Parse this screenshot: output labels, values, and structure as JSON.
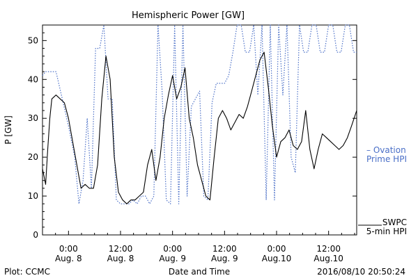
{
  "chart_data": {
    "type": "line",
    "title": "Hemispheric Power [GW]",
    "ylabel": "P [GW]",
    "xlabel": "Date and Time",
    "ylim": [
      0,
      54
    ],
    "xlim": [
      -0.25,
      2.77
    ],
    "yticks": [
      0,
      10,
      20,
      30,
      40,
      50
    ],
    "grid": false,
    "xticks": [
      {
        "x": 0.0,
        "time": "0:00",
        "date": "Aug. 8"
      },
      {
        "x": 0.5,
        "time": "12:00",
        "date": "Aug. 8"
      },
      {
        "x": 1.0,
        "time": "0:00",
        "date": "Aug. 9"
      },
      {
        "x": 1.5,
        "time": "12:00",
        "date": "Aug. 9"
      },
      {
        "x": 2.0,
        "time": "0:00",
        "date": "Aug.10"
      },
      {
        "x": 2.5,
        "time": "12:00",
        "date": "Aug.10"
      }
    ],
    "series": [
      {
        "name": "SWPC 5-min HPI",
        "label_lines": [
          "SWPC",
          "5-min HPI"
        ],
        "color": "#000000",
        "style": "solid",
        "x": [
          -0.25,
          -0.22,
          -0.2,
          -0.18,
          -0.16,
          -0.12,
          -0.08,
          -0.04,
          0.0,
          0.04,
          0.08,
          0.12,
          0.16,
          0.2,
          0.24,
          0.28,
          0.32,
          0.36,
          0.4,
          0.44,
          0.48,
          0.52,
          0.56,
          0.6,
          0.64,
          0.68,
          0.72,
          0.76,
          0.8,
          0.84,
          0.88,
          0.92,
          0.96,
          1.0,
          1.04,
          1.08,
          1.12,
          1.16,
          1.2,
          1.24,
          1.28,
          1.32,
          1.36,
          1.4,
          1.44,
          1.48,
          1.52,
          1.56,
          1.6,
          1.64,
          1.68,
          1.72,
          1.76,
          1.8,
          1.84,
          1.88,
          1.92,
          1.96,
          2.0,
          2.04,
          2.08,
          2.12,
          2.16,
          2.2,
          2.24,
          2.28,
          2.32,
          2.36,
          2.4,
          2.44,
          2.48,
          2.52,
          2.56,
          2.6,
          2.64,
          2.68,
          2.72,
          2.77
        ],
        "y": [
          17,
          13,
          22,
          30,
          35,
          36,
          35,
          34,
          30,
          24,
          18,
          12,
          13,
          12,
          12,
          18,
          35,
          46,
          40,
          20,
          11,
          9,
          8,
          9,
          9,
          10,
          11,
          18,
          22,
          14,
          20,
          30,
          36,
          41,
          35,
          38,
          43,
          30,
          25,
          18,
          14,
          10,
          9,
          20,
          30,
          32,
          30,
          27,
          29,
          31,
          30,
          33,
          37,
          41,
          45,
          47,
          38,
          28,
          20,
          24,
          25,
          27,
          23,
          22,
          24,
          32,
          22,
          17,
          22,
          26,
          25,
          24,
          23,
          22,
          23,
          25,
          28,
          32
        ]
      },
      {
        "name": "Ovation Prime HPI",
        "label_lines": [
          "– Ovation",
          "Prime HPI"
        ],
        "color": "#4a6fc7",
        "style": "dotted",
        "x": [
          -0.25,
          -0.22,
          -0.18,
          -0.12,
          -0.06,
          0.0,
          0.06,
          0.1,
          0.14,
          0.18,
          0.22,
          0.26,
          0.3,
          0.34,
          0.38,
          0.42,
          0.46,
          0.5,
          0.54,
          0.58,
          0.62,
          0.66,
          0.7,
          0.74,
          0.78,
          0.82,
          0.86,
          0.9,
          0.94,
          0.98,
          1.02,
          1.06,
          1.1,
          1.14,
          1.18,
          1.22,
          1.26,
          1.3,
          1.34,
          1.38,
          1.42,
          1.46,
          1.5,
          1.54,
          1.58,
          1.62,
          1.66,
          1.7,
          1.74,
          1.78,
          1.82,
          1.86,
          1.9,
          1.94,
          1.98,
          2.02,
          2.06,
          2.1,
          2.14,
          2.18,
          2.22,
          2.26,
          2.3,
          2.34,
          2.38,
          2.42,
          2.46,
          2.5,
          2.54,
          2.58,
          2.62,
          2.66,
          2.7,
          2.74,
          2.77
        ],
        "y": [
          41,
          42,
          42,
          42,
          35,
          28,
          20,
          8,
          14,
          30,
          12,
          48,
          48,
          54,
          35,
          35,
          9,
          8,
          8,
          8,
          9,
          8,
          10,
          10,
          8,
          10,
          54,
          37,
          9,
          8,
          54,
          8,
          54,
          10,
          33,
          35,
          37,
          10,
          9,
          34,
          39,
          39,
          39,
          41,
          47,
          54,
          54,
          47,
          47,
          54,
          36,
          54,
          9,
          54,
          9,
          54,
          36,
          54,
          20,
          16,
          54,
          47,
          47,
          54,
          54,
          47,
          47,
          54,
          54,
          47,
          47,
          54,
          54,
          47,
          47
        ]
      }
    ]
  },
  "footer": {
    "left": "Plot: CCMC",
    "timestamp": "2016/08/10 20:50:24"
  }
}
